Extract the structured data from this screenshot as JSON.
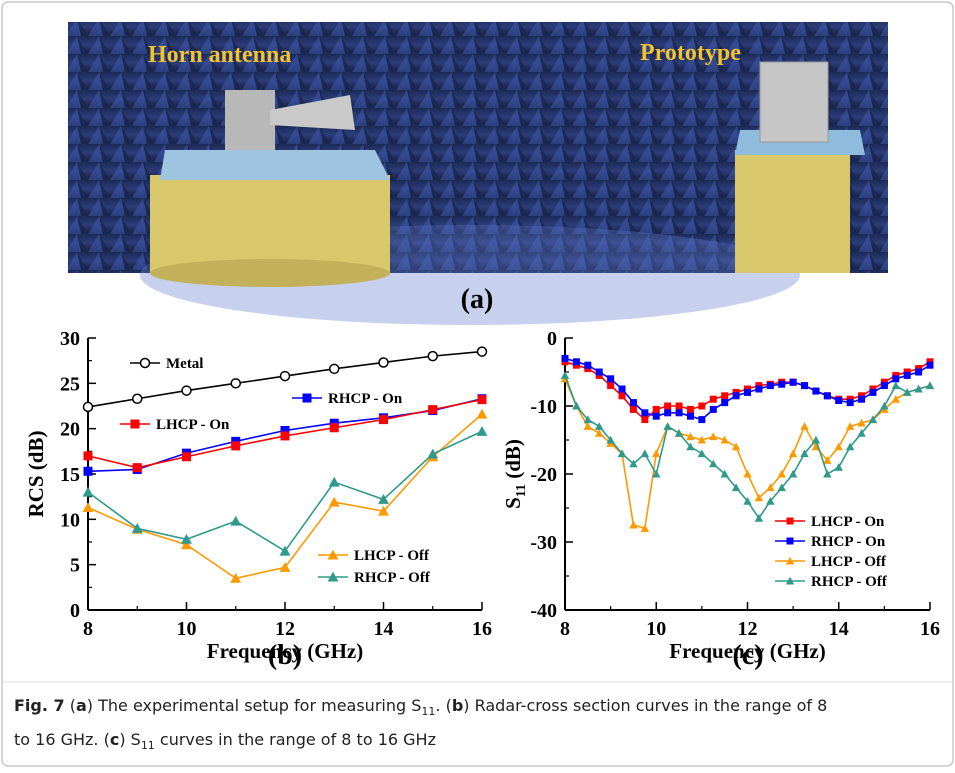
{
  "figure": {
    "photo_labels": [
      "Horn antenna",
      "Prototype"
    ],
    "panel_labels": [
      "(a)",
      "(b)",
      "(c)"
    ]
  },
  "chart_data": [
    {
      "type": "line",
      "xlabel": "Frequency (GHz)",
      "ylabel": [
        {
          "text": "RCS (dB)"
        }
      ],
      "x": [
        8,
        9,
        10,
        11,
        12,
        13,
        14,
        15,
        16
      ],
      "xlim": [
        8,
        16
      ],
      "xticks": [
        8,
        10,
        12,
        14,
        16
      ],
      "ylim": [
        0,
        30
      ],
      "yticks": [
        0,
        5,
        10,
        15,
        20,
        25,
        30
      ],
      "series": [
        {
          "name": "Metal",
          "color": "#000000",
          "marker": "circle",
          "values": [
            22.4,
            23.3,
            24.2,
            25.0,
            25.8,
            26.6,
            27.3,
            28.0,
            28.5
          ]
        },
        {
          "name": "RHCP - On",
          "color": "#0000ff",
          "marker": "square",
          "values": [
            15.3,
            15.5,
            17.3,
            18.6,
            19.8,
            20.6,
            21.2,
            22.0,
            23.3
          ]
        },
        {
          "name": "LHCP - On",
          "color": "#ff0000",
          "marker": "square",
          "values": [
            17.0,
            15.7,
            16.9,
            18.1,
            19.2,
            20.1,
            21.0,
            22.1,
            23.2
          ]
        },
        {
          "name": "LHCP - Off",
          "color": "#ff9900",
          "marker": "triangle",
          "values": [
            11.3,
            8.9,
            7.2,
            3.5,
            4.7,
            11.9,
            10.9,
            16.9,
            21.6
          ]
        },
        {
          "name": "RHCP - Off",
          "color": "#2f9a8c",
          "marker": "triangle",
          "values": [
            13.0,
            9.0,
            7.8,
            9.8,
            6.5,
            14.1,
            12.2,
            17.2,
            19.7
          ]
        }
      ]
    },
    {
      "type": "line",
      "xlabel": "Frequency (GHz)",
      "ylabel": [
        {
          "text": "S"
        },
        {
          "text": "11",
          "style": "sub"
        },
        {
          "text": " (dB)"
        }
      ],
      "x": [
        8,
        8.25,
        8.5,
        8.75,
        9,
        9.25,
        9.5,
        9.75,
        10,
        10.25,
        10.5,
        10.75,
        11,
        11.25,
        11.5,
        11.75,
        12,
        12.25,
        12.5,
        12.75,
        13,
        13.25,
        13.5,
        13.75,
        14,
        14.25,
        14.5,
        14.75,
        15,
        15.25,
        15.5,
        15.75,
        16
      ],
      "xlim": [
        8,
        16
      ],
      "xticks": [
        8,
        10,
        12,
        14,
        16
      ],
      "ylim": [
        -40,
        0
      ],
      "yticks": [
        -40,
        -30,
        -20,
        -10,
        0
      ],
      "series": [
        {
          "name": "LHCP - On",
          "color": "#ff0000",
          "marker": "square",
          "values": [
            -3.5,
            -4,
            -4.5,
            -5.5,
            -7,
            -8.5,
            -10.5,
            -12,
            -10.5,
            -10,
            -10,
            -10.5,
            -10,
            -9,
            -8.5,
            -8,
            -7.5,
            -7,
            -6.8,
            -6.5,
            -6.5,
            -7,
            -7.8,
            -8.5,
            -9,
            -9,
            -8.5,
            -7.5,
            -6.5,
            -5.5,
            -5,
            -4.5,
            -3.5
          ]
        },
        {
          "name": "RHCP - On",
          "color": "#0000ff",
          "marker": "square",
          "values": [
            -3,
            -3.5,
            -4,
            -5,
            -6,
            -7.5,
            -9.5,
            -11,
            -11.5,
            -11,
            -11,
            -11.5,
            -12,
            -10.5,
            -9.5,
            -8.5,
            -8,
            -7.5,
            -7,
            -6.8,
            -6.5,
            -7,
            -7.8,
            -8.5,
            -9.2,
            -9.5,
            -9,
            -8,
            -7,
            -6,
            -5.5,
            -5,
            -4
          ]
        },
        {
          "name": "LHCP - Off",
          "color": "#ff9900",
          "marker": "triangle",
          "values": [
            -6,
            -10,
            -13,
            -14,
            -15.5,
            -17,
            -27.5,
            -28,
            -17,
            -13,
            -14,
            -14.5,
            -15,
            -14.5,
            -15,
            -16,
            -20,
            -23.5,
            -22,
            -20,
            -17,
            -13,
            -16,
            -18,
            -16,
            -13,
            -12.5,
            -12,
            -10.5,
            -9,
            -8,
            -7.5,
            -7
          ]
        },
        {
          "name": "RHCP - Off",
          "color": "#2f9a8c",
          "marker": "triangle",
          "values": [
            -5.5,
            -10,
            -12,
            -13,
            -15,
            -17,
            -18.5,
            -17,
            -20,
            -13,
            -14,
            -16,
            -17,
            -18.5,
            -20,
            -22,
            -24,
            -26.5,
            -24,
            -22,
            -20,
            -17,
            -15,
            -20,
            -19,
            -16,
            -14,
            -12,
            -10,
            -7,
            -8,
            -7.5,
            -7
          ]
        }
      ]
    }
  ],
  "caption": [
    {
      "text": "Fig. 7",
      "style": "bold"
    },
    {
      "text": "  ("
    },
    {
      "text": "a",
      "style": "bold"
    },
    {
      "text": ") The experimental setup for measuring S"
    },
    {
      "text": "11",
      "style": "sub"
    },
    {
      "text": ". ("
    },
    {
      "text": "b",
      "style": "bold"
    },
    {
      "text": ") Radar-cross section curves in the range of 8 to 16 GHz. ("
    },
    {
      "text": "c",
      "style": "bold"
    },
    {
      "text": ") S"
    },
    {
      "text": "11",
      "style": "sub"
    },
    {
      "text": " curves in the range of 8 to 16 GHz"
    }
  ]
}
